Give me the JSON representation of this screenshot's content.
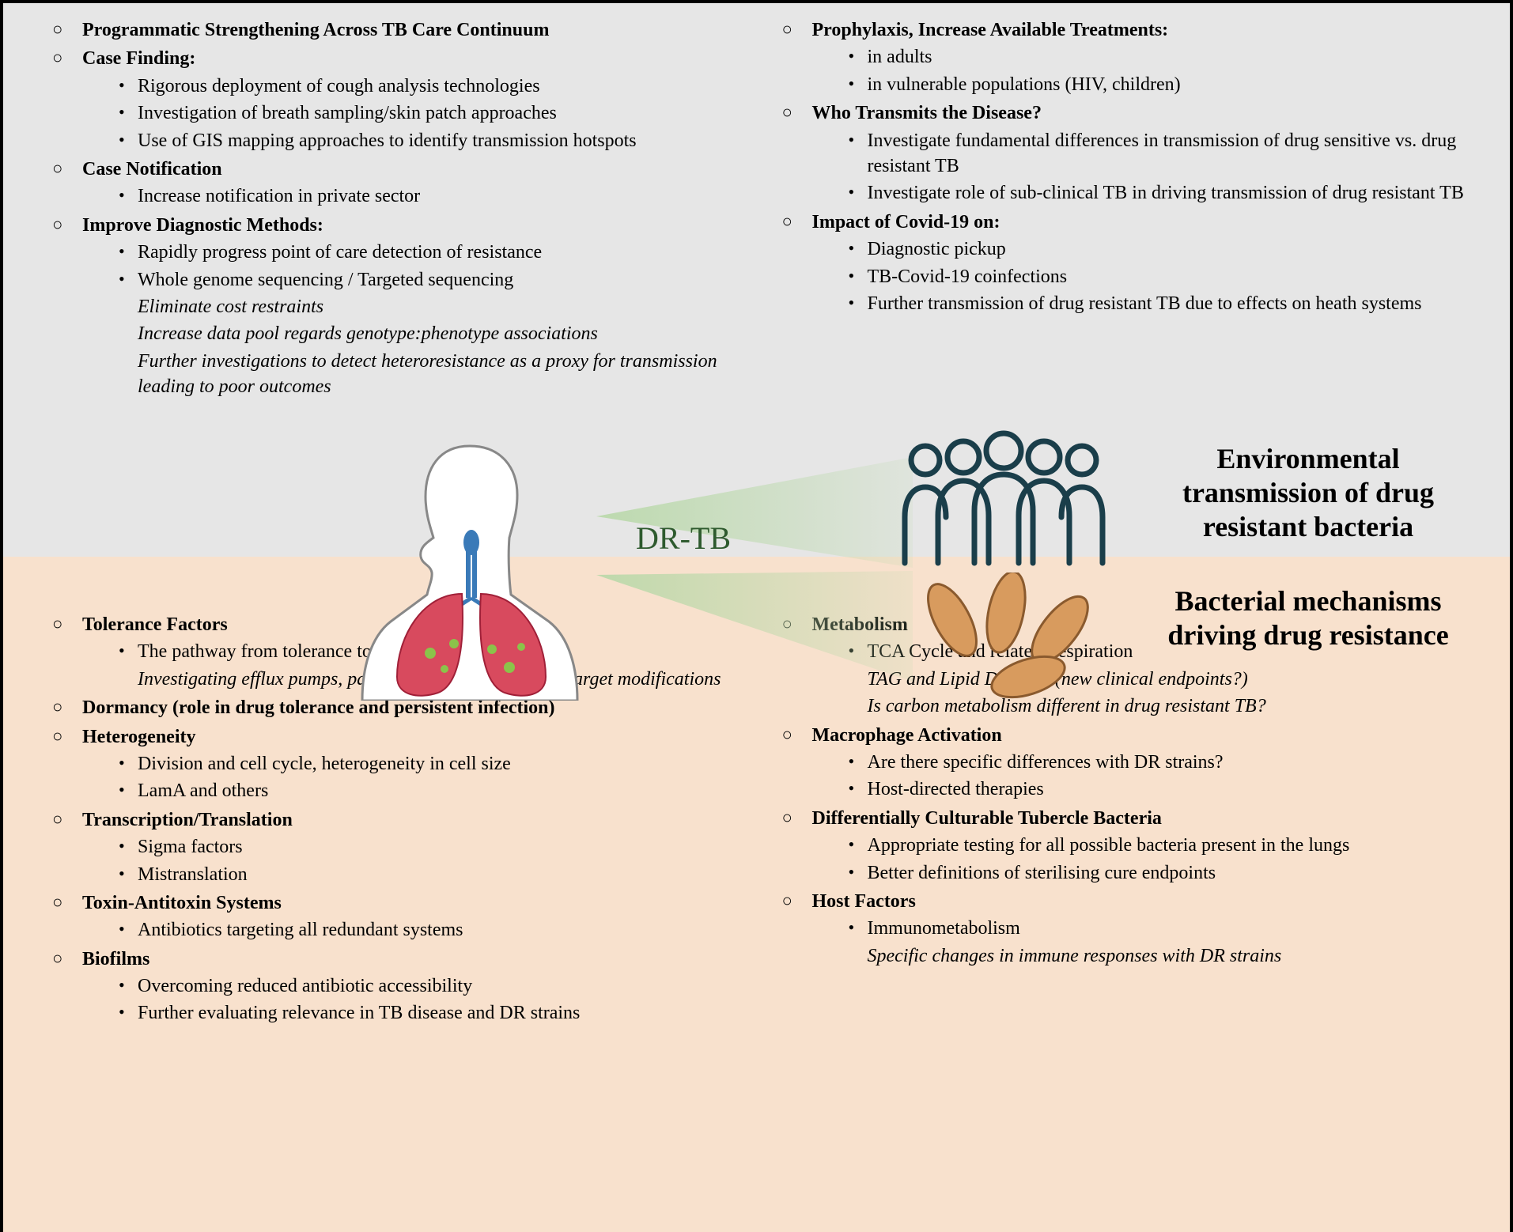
{
  "figure": {
    "border_color": "#000000",
    "top_bg": "#e6e6e6",
    "bottom_bg": "#f8e1cd"
  },
  "center": {
    "label": "DR-TB",
    "label_color": "#2e5a2e",
    "env_title_l1": "Environmental",
    "env_title_l2": "transmission of drug",
    "env_title_l3": "resistant bacteria",
    "bac_title_l1": "Bacterial mechanisms",
    "bac_title_l2": "driving drug resistance",
    "people_color": "#1a3e4a",
    "bacteria_fill": "#d89b5e",
    "bacteria_stroke": "#8a5a2e",
    "cone_fill": "#b8d8a8",
    "lung_fill": "#d84a5e",
    "trachea_fill": "#3a7ab8"
  },
  "top_left": [
    {
      "title": "Programmatic Strengthening Across TB Care Continuum"
    },
    {
      "title": "Case Finding:",
      "sub": [
        "Rigorous deployment of cough analysis technologies",
        "Investigation of breath sampling/skin patch approaches",
        "Use of GIS mapping approaches to identify transmission hotspots"
      ]
    },
    {
      "title": "Case Notification",
      "sub": [
        "Increase notification in private sector"
      ]
    },
    {
      "title": "Improve Diagnostic Methods:",
      "sub": [
        "Rapidly progress point of care detection of resistance",
        {
          "text": "Whole genome sequencing / Targeted sequencing",
          "subsub": [
            "Eliminate cost restraints",
            "Increase data pool regards genotype:phenotype associations",
            "Further investigations to detect heteroresistance as a proxy for transmission leading to poor outcomes"
          ]
        }
      ]
    }
  ],
  "top_right": [
    {
      "title": "Prophylaxis, Increase Available Treatments:",
      "sub": [
        "in adults",
        "in vulnerable populations (HIV, children)"
      ]
    },
    {
      "title": "Who Transmits the Disease?",
      "sub": [
        "Investigate fundamental differences in transmission of drug sensitive vs. drug resistant TB",
        "Investigate role of sub-clinical TB in driving transmission of drug resistant TB"
      ]
    },
    {
      "title": "Impact of Covid-19 on:",
      "sub": [
        "Diagnostic pickup",
        "TB-Covid-19 coinfections",
        "Further transmission of drug resistant TB due to effects on heath systems"
      ]
    }
  ],
  "bottom_left": [
    {
      "title": "Tolerance Factors",
      "sub": [
        {
          "text": "The pathway from tolerance to resistance",
          "subsub": [
            "Investigating efflux pumps, pathway redundancies, drug target modifications"
          ]
        }
      ]
    },
    {
      "title": "Dormancy (role in drug tolerance and persistent infection)"
    },
    {
      "title": "Heterogeneity",
      "sub": [
        "Division and cell cycle, heterogeneity in cell size",
        "LamA and others"
      ]
    },
    {
      "title": "Transcription/Translation",
      "sub": [
        "Sigma factors",
        "Mistranslation"
      ]
    },
    {
      "title": "Toxin-Antitoxin Systems",
      "sub": [
        "Antibiotics targeting all redundant systems"
      ]
    },
    {
      "title": "Biofilms",
      "sub": [
        "Overcoming reduced antibiotic accessibility",
        "Further evaluating relevance in TB disease and DR strains"
      ]
    }
  ],
  "bottom_right": [
    {
      "title": "Metabolism",
      "sub": [
        {
          "text": "TCA Cycle and related; respiration",
          "subsub": [
            "TAG and Lipid Droplets (new clinical endpoints?)",
            "Is carbon metabolism different in drug resistant TB?"
          ]
        }
      ]
    },
    {
      "title": "Macrophage Activation",
      "sub": [
        "Are there specific differences with DR strains?",
        "Host-directed therapies"
      ]
    },
    {
      "title": "Differentially Culturable Tubercle Bacteria",
      "sub": [
        "Appropriate testing for all possible bacteria present in the lungs",
        "Better definitions of sterilising cure endpoints"
      ]
    },
    {
      "title": "Host Factors",
      "sub": [
        {
          "text": "Immunometabolism",
          "subsub": [
            "Specific changes in immune responses with DR strains"
          ]
        }
      ]
    }
  ]
}
